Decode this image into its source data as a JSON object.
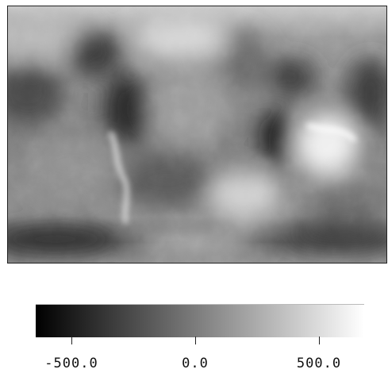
{
  "map": {
    "colormap": "grayscale",
    "colors": {
      "low": "#000000",
      "high": "#ffffff",
      "frame": "#222222"
    }
  },
  "colorbar": {
    "min": -700,
    "max": 700,
    "ticks": [
      {
        "value": -500,
        "label": "-500.0"
      },
      {
        "value": 0,
        "label": "0.0"
      },
      {
        "value": 500,
        "label": "500.0"
      }
    ]
  }
}
